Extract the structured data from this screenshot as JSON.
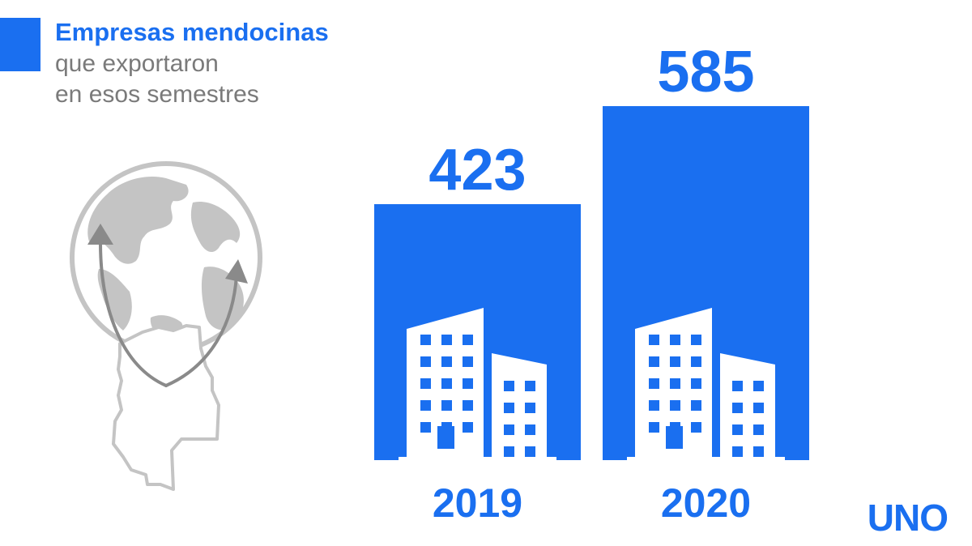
{
  "header": {
    "title": "Empresas mendocinas",
    "subtitle_line1": "que exportaron",
    "subtitle_line2": "en esos semestres"
  },
  "logo": {
    "text": "UNO"
  },
  "colors": {
    "accent": "#1a6ff0",
    "map_gray": "#c4c4c4",
    "arrow_gray": "#8a8a8a"
  },
  "chart_data": {
    "type": "bar",
    "categories": [
      "2019",
      "2020"
    ],
    "values": [
      423,
      585
    ],
    "data_labels": [
      "423",
      "585"
    ],
    "title": "Empresas mendocinas que exportaron en esos semestres",
    "xlabel": "",
    "ylabel": "",
    "grid": false,
    "legend": "none",
    "bar_icon": "building-icon"
  }
}
